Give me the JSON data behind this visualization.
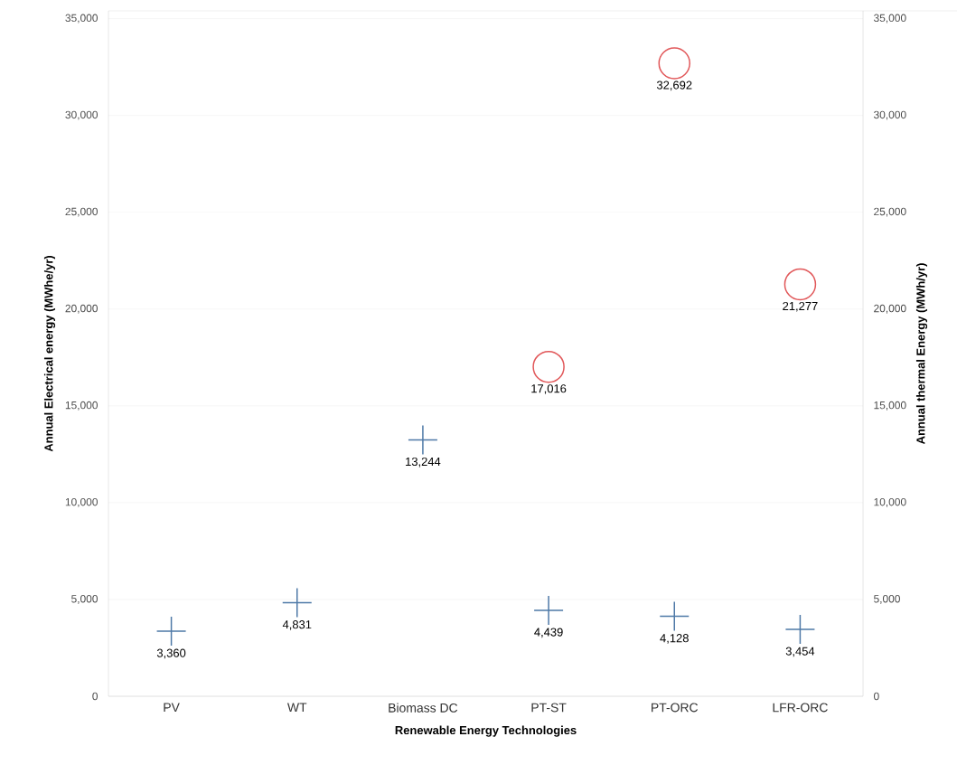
{
  "chart_data": {
    "type": "scatter",
    "categories": [
      "PV",
      "WT",
      "Biomass DC",
      "PT-ST",
      "PT-ORC",
      "LFR-ORC"
    ],
    "xlabel": "Renewable Energy Technologies",
    "ylabel": "Annual Electrical energy (MWhe/yr)",
    "y2label": "Annual thermal Energy (MWh/yr)",
    "series": [
      {
        "color": "#4e79a7",
        "marker": "cross",
        "values": [
          3360,
          4831,
          13244,
          4439,
          4128,
          3454
        ],
        "value_labels": [
          "3,360",
          "4,831",
          "13,244",
          "4,439",
          "4,128",
          "3,454"
        ]
      },
      {
        "color": "#e15759",
        "marker": "circle",
        "axis": "y2",
        "values": [
          null,
          null,
          null,
          17016,
          32692,
          21277
        ],
        "value_labels": [
          null,
          null,
          null,
          "17,016",
          "32,692",
          "21,277"
        ]
      }
    ],
    "ylim": [
      0,
      35400
    ],
    "yticks": [
      {
        "value": 0,
        "label": "0"
      },
      {
        "value": 5000,
        "label": "5,000"
      },
      {
        "value": 10000,
        "label": "10,000"
      },
      {
        "value": 15000,
        "label": "15,000"
      },
      {
        "value": 20000,
        "label": "20,000"
      },
      {
        "value": 25000,
        "label": "25,000"
      },
      {
        "value": 30000,
        "label": "30,000"
      },
      {
        "value": 35000,
        "label": "35,000"
      }
    ],
    "y2lim": [
      0,
      35400
    ],
    "y2ticks": [
      {
        "value": 0,
        "label": "0"
      },
      {
        "value": 5000,
        "label": "5,000"
      },
      {
        "value": 10000,
        "label": "10,000"
      },
      {
        "value": 15000,
        "label": "15,000"
      },
      {
        "value": 20000,
        "label": "20,000"
      },
      {
        "value": 25000,
        "label": "25,000"
      },
      {
        "value": 30000,
        "label": "30,000"
      },
      {
        "value": 35000,
        "label": "35,000"
      }
    ],
    "grid": "y"
  }
}
